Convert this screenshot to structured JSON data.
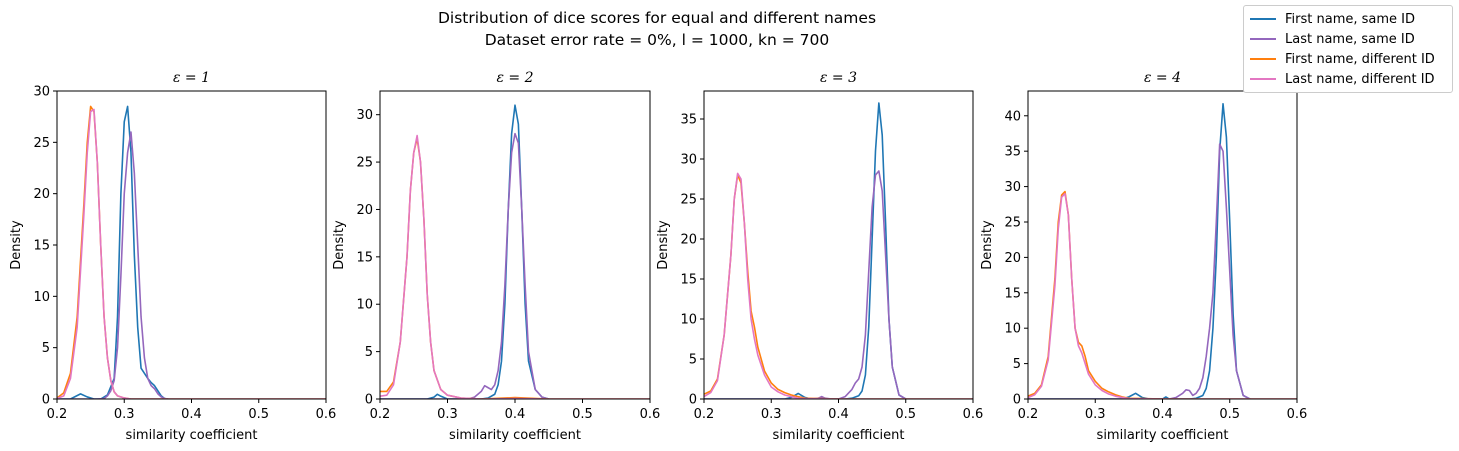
{
  "figure": {
    "title": "Distribution of dice scores for equal and different names",
    "subtitle": "Dataset error rate = 0%,    l = 1000,    kn = 700"
  },
  "legend": {
    "placement": "top-right",
    "entries": [
      {
        "label": "First name, same ID",
        "color": "#1f77b4"
      },
      {
        "label": "Last name, same ID",
        "color": "#9467bd"
      },
      {
        "label": "First name, different ID",
        "color": "#ff7f0e"
      },
      {
        "label": "Last name, different ID",
        "color": "#e377c2"
      }
    ]
  },
  "chart_data": [
    {
      "type": "line",
      "title": "ε = 1",
      "xlabel": "similarity coefficient",
      "ylabel": "Density",
      "xlim": [
        0.2,
        0.6
      ],
      "ylim": [
        0,
        30
      ],
      "xticks": [
        0.2,
        0.3,
        0.4,
        0.5,
        0.6
      ],
      "xtick_labels": [
        "0.2",
        "0.3",
        "0.4",
        "0.5",
        "0.6"
      ],
      "yticks": [
        0,
        5,
        10,
        15,
        20,
        25,
        30
      ],
      "ytick_labels": [
        "0",
        "5",
        "10",
        "15",
        "20",
        "25",
        "30"
      ],
      "series": [
        {
          "name": "First name, same ID",
          "color": "#1f77b4",
          "x": [
            0.2,
            0.22,
            0.235,
            0.245,
            0.255,
            0.265,
            0.275,
            0.285,
            0.29,
            0.295,
            0.3,
            0.305,
            0.31,
            0.315,
            0.32,
            0.325,
            0.33,
            0.335,
            0.34,
            0.345,
            0.35,
            0.355,
            0.36,
            0.365
          ],
          "y": [
            0,
            0,
            0.5,
            0.2,
            0,
            0,
            0.4,
            2,
            8,
            20,
            27,
            28.5,
            24,
            14,
            7,
            3,
            2.5,
            2,
            1.6,
            1.3,
            0.8,
            0.3,
            0.05,
            0
          ]
        },
        {
          "name": "Last name, same ID",
          "color": "#9467bd",
          "x": [
            0.2,
            0.26,
            0.27,
            0.275,
            0.28,
            0.285,
            0.29,
            0.295,
            0.3,
            0.305,
            0.31,
            0.315,
            0.32,
            0.325,
            0.33,
            0.335,
            0.34,
            0.345,
            0.35,
            0.355,
            0.36,
            0.365
          ],
          "y": [
            0,
            0,
            0.05,
            0.3,
            0.8,
            1.8,
            5,
            12,
            20,
            24,
            26,
            22,
            15,
            8,
            4,
            2,
            1.3,
            1,
            0.5,
            0.2,
            0.05,
            0
          ]
        },
        {
          "name": "First name, different ID",
          "color": "#ff7f0e",
          "x": [
            0.2,
            0.21,
            0.22,
            0.23,
            0.24,
            0.245,
            0.25,
            0.255,
            0.26,
            0.265,
            0.27,
            0.275,
            0.28,
            0.285,
            0.29,
            0.3,
            0.31,
            0.6
          ],
          "y": [
            0.1,
            0.6,
            2.5,
            8,
            19,
            25,
            28.5,
            28,
            23,
            15,
            8,
            4,
            1.8,
            0.7,
            0.3,
            0.1,
            0,
            0
          ]
        },
        {
          "name": "Last name, different ID",
          "color": "#e377c2",
          "x": [
            0.2,
            0.21,
            0.22,
            0.23,
            0.24,
            0.245,
            0.25,
            0.255,
            0.26,
            0.265,
            0.27,
            0.275,
            0.28,
            0.285,
            0.29,
            0.3,
            0.31,
            0.6
          ],
          "y": [
            0.05,
            0.3,
            2,
            7,
            18,
            24,
            28,
            28.2,
            23,
            15,
            8,
            4,
            1.8,
            0.7,
            0.3,
            0.1,
            0,
            0
          ]
        }
      ]
    },
    {
      "type": "line",
      "title": "ε = 2",
      "xlabel": "similarity coefficient",
      "ylabel": "Density",
      "xlim": [
        0.2,
        0.6
      ],
      "ylim": [
        0,
        32.5
      ],
      "xticks": [
        0.2,
        0.3,
        0.4,
        0.5,
        0.6
      ],
      "xtick_labels": [
        "0.2",
        "0.3",
        "0.4",
        "0.5",
        "0.6"
      ],
      "yticks": [
        0,
        5,
        10,
        15,
        20,
        25,
        30
      ],
      "ytick_labels": [
        "0",
        "5",
        "10",
        "15",
        "20",
        "25",
        "30"
      ],
      "series": [
        {
          "name": "First name, same ID",
          "color": "#1f77b4",
          "x": [
            0.2,
            0.27,
            0.28,
            0.285,
            0.29,
            0.3,
            0.35,
            0.36,
            0.37,
            0.375,
            0.38,
            0.385,
            0.39,
            0.395,
            0.4,
            0.405,
            0.41,
            0.415,
            0.42,
            0.43,
            0.44,
            0.45
          ],
          "y": [
            0,
            0,
            0.2,
            0.5,
            0.3,
            0,
            0,
            0.1,
            0.5,
            1.5,
            4,
            10,
            20,
            28,
            31,
            29,
            20,
            10,
            4,
            1,
            0.2,
            0
          ]
        },
        {
          "name": "Last name, same ID",
          "color": "#9467bd",
          "x": [
            0.2,
            0.33,
            0.34,
            0.35,
            0.355,
            0.36,
            0.365,
            0.37,
            0.375,
            0.38,
            0.385,
            0.39,
            0.395,
            0.4,
            0.405,
            0.41,
            0.415,
            0.42,
            0.43,
            0.44,
            0.45
          ],
          "y": [
            0,
            0,
            0.2,
            0.8,
            1.4,
            1.2,
            1,
            1.5,
            3,
            6,
            12,
            20,
            26,
            28,
            27,
            20,
            12,
            5,
            1,
            0.2,
            0
          ]
        },
        {
          "name": "First name, different ID",
          "color": "#ff7f0e",
          "x": [
            0.2,
            0.21,
            0.22,
            0.23,
            0.24,
            0.245,
            0.25,
            0.255,
            0.26,
            0.265,
            0.27,
            0.275,
            0.28,
            0.29,
            0.3,
            0.32,
            0.35,
            0.4,
            0.45,
            0.6
          ],
          "y": [
            0.8,
            0.8,
            1.8,
            6,
            15,
            22,
            26,
            27.5,
            25,
            19,
            11,
            6,
            3,
            1,
            0.4,
            0.1,
            0,
            0.15,
            0,
            0
          ]
        },
        {
          "name": "Last name, different ID",
          "color": "#e377c2",
          "x": [
            0.2,
            0.21,
            0.22,
            0.23,
            0.24,
            0.245,
            0.25,
            0.255,
            0.26,
            0.265,
            0.27,
            0.275,
            0.28,
            0.29,
            0.3,
            0.32,
            0.35,
            0.4,
            0.45,
            0.6
          ],
          "y": [
            0.3,
            0.4,
            1.5,
            6,
            15,
            22,
            26,
            27.8,
            25,
            19,
            11,
            6,
            3,
            1,
            0.4,
            0.1,
            0,
            0.05,
            0,
            0
          ]
        }
      ]
    },
    {
      "type": "line",
      "title": "ε = 3",
      "xlabel": "similarity coefficient",
      "ylabel": "Density",
      "xlim": [
        0.2,
        0.6
      ],
      "ylim": [
        0,
        38.5
      ],
      "xticks": [
        0.2,
        0.3,
        0.4,
        0.5,
        0.6
      ],
      "xtick_labels": [
        "0.2",
        "0.3",
        "0.4",
        "0.5",
        "0.6"
      ],
      "yticks": [
        0,
        5,
        10,
        15,
        20,
        25,
        30,
        35
      ],
      "ytick_labels": [
        "0",
        "5",
        "10",
        "15",
        "20",
        "25",
        "30",
        "35"
      ],
      "series": [
        {
          "name": "First name, same ID",
          "color": "#1f77b4",
          "x": [
            0.2,
            0.32,
            0.33,
            0.34,
            0.35,
            0.36,
            0.37,
            0.375,
            0.38,
            0.39,
            0.41,
            0.42,
            0.43,
            0.435,
            0.44,
            0.445,
            0.45,
            0.455,
            0.46,
            0.465,
            0.47,
            0.475,
            0.48,
            0.49,
            0.5
          ],
          "y": [
            0,
            0,
            0.2,
            0.7,
            0.2,
            0,
            0,
            0.2,
            0,
            0,
            0,
            0.1,
            0.4,
            1,
            3,
            9,
            20,
            31,
            37,
            33,
            22,
            10,
            4,
            0.5,
            0
          ]
        },
        {
          "name": "Last name, same ID",
          "color": "#9467bd",
          "x": [
            0.2,
            0.36,
            0.37,
            0.375,
            0.38,
            0.39,
            0.4,
            0.41,
            0.42,
            0.425,
            0.43,
            0.435,
            0.44,
            0.445,
            0.45,
            0.455,
            0.46,
            0.465,
            0.47,
            0.475,
            0.48,
            0.49,
            0.5
          ],
          "y": [
            0,
            0,
            0.1,
            0.3,
            0.1,
            0,
            0,
            0.3,
            1.2,
            2,
            2.5,
            4,
            8,
            16,
            24,
            28,
            28.5,
            26,
            18,
            10,
            4,
            0.5,
            0
          ]
        },
        {
          "name": "First name, different ID",
          "color": "#ff7f0e",
          "x": [
            0.2,
            0.21,
            0.22,
            0.23,
            0.24,
            0.245,
            0.25,
            0.255,
            0.26,
            0.265,
            0.27,
            0.275,
            0.28,
            0.29,
            0.3,
            0.31,
            0.32,
            0.33,
            0.34,
            0.35,
            0.4,
            0.6
          ],
          "y": [
            0.6,
            1,
            2.5,
            8,
            18,
            25,
            28,
            27,
            22,
            16,
            11,
            9,
            6.5,
            3.5,
            2,
            1.2,
            0.8,
            0.5,
            0.3,
            0.1,
            0,
            0
          ]
        },
        {
          "name": "Last name, different ID",
          "color": "#e377c2",
          "x": [
            0.2,
            0.21,
            0.22,
            0.23,
            0.24,
            0.245,
            0.25,
            0.255,
            0.26,
            0.265,
            0.27,
            0.275,
            0.28,
            0.29,
            0.3,
            0.31,
            0.32,
            0.33,
            0.34,
            0.35,
            0.4,
            0.6
          ],
          "y": [
            0.3,
            0.8,
            2.3,
            8,
            18,
            25,
            28.2,
            27.5,
            22,
            15,
            10,
            7.5,
            5.5,
            3,
            1.5,
            0.9,
            0.5,
            0.3,
            0.1,
            0.05,
            0,
            0
          ]
        }
      ]
    },
    {
      "type": "line",
      "title": "ε = 4",
      "xlabel": "similarity coefficient",
      "ylabel": "Density",
      "xlim": [
        0.2,
        0.6
      ],
      "ylim": [
        0,
        43.5
      ],
      "xticks": [
        0.2,
        0.3,
        0.4,
        0.5,
        0.6
      ],
      "xtick_labels": [
        "0.2",
        "0.3",
        "0.4",
        "0.5",
        "0.6"
      ],
      "yticks": [
        0,
        5,
        10,
        15,
        20,
        25,
        30,
        35,
        40
      ],
      "ytick_labels": [
        "0",
        "5",
        "10",
        "15",
        "20",
        "25",
        "30",
        "35",
        "40"
      ],
      "series": [
        {
          "name": "First name, same ID",
          "color": "#1f77b4",
          "x": [
            0.2,
            0.34,
            0.35,
            0.36,
            0.37,
            0.38,
            0.4,
            0.405,
            0.41,
            0.44,
            0.45,
            0.46,
            0.465,
            0.47,
            0.475,
            0.48,
            0.485,
            0.49,
            0.495,
            0.5,
            0.505,
            0.51,
            0.52,
            0.53
          ],
          "y": [
            0,
            0,
            0.3,
            0.8,
            0.2,
            0,
            0,
            0.3,
            0,
            0,
            0.1,
            0.5,
            1.5,
            4,
            10,
            20,
            35,
            41.7,
            37,
            25,
            12,
            4,
            0.5,
            0
          ]
        },
        {
          "name": "Last name, same ID",
          "color": "#9467bd",
          "x": [
            0.2,
            0.41,
            0.42,
            0.43,
            0.435,
            0.44,
            0.445,
            0.45,
            0.455,
            0.46,
            0.465,
            0.47,
            0.475,
            0.48,
            0.485,
            0.49,
            0.495,
            0.5,
            0.505,
            0.51,
            0.52,
            0.53
          ],
          "y": [
            0,
            0,
            0.2,
            0.8,
            1.3,
            1.2,
            0.5,
            0.8,
            1.5,
            3,
            6,
            10,
            15,
            25,
            36,
            35,
            27,
            18,
            9,
            4,
            0.5,
            0
          ]
        },
        {
          "name": "First name, different ID",
          "color": "#ff7f0e",
          "x": [
            0.2,
            0.21,
            0.22,
            0.23,
            0.24,
            0.245,
            0.25,
            0.255,
            0.26,
            0.265,
            0.27,
            0.275,
            0.28,
            0.285,
            0.29,
            0.3,
            0.31,
            0.32,
            0.33,
            0.34,
            0.35,
            0.4,
            0.6
          ],
          "y": [
            0.4,
            0.8,
            2,
            6,
            17,
            25,
            28.8,
            29.3,
            26,
            17,
            10,
            8,
            7.5,
            6,
            4,
            2.5,
            1.5,
            1,
            0.6,
            0.3,
            0.1,
            0,
            0
          ]
        },
        {
          "name": "Last name, different ID",
          "color": "#e377c2",
          "x": [
            0.2,
            0.21,
            0.22,
            0.23,
            0.24,
            0.245,
            0.25,
            0.255,
            0.26,
            0.265,
            0.27,
            0.275,
            0.28,
            0.285,
            0.29,
            0.3,
            0.31,
            0.32,
            0.33,
            0.34,
            0.35,
            0.4,
            0.6
          ],
          "y": [
            0.2,
            0.6,
            1.8,
            5.5,
            16,
            24,
            28.5,
            29,
            26,
            17,
            10,
            7.5,
            6.5,
            5,
            3.5,
            2,
            1.2,
            0.7,
            0.4,
            0.2,
            0.05,
            0,
            0
          ]
        }
      ]
    }
  ]
}
